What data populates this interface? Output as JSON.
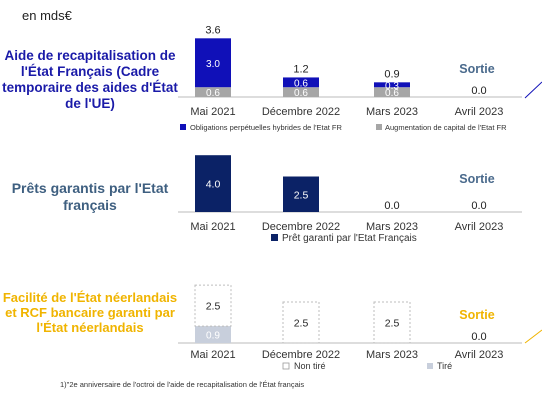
{
  "unit_label": "en mds€",
  "footnote": "1)\"2e anniversaire de l'octroi de l'aide de recapitalisation de l'État français",
  "colors": {
    "navy_blue": "#1010b8",
    "dark_navy": "#0b2266",
    "gray": "#a6a6a6",
    "light_blue": "#c8cfdc",
    "exit_blue": "#4a6a8c",
    "exit_yellow": "#f0b400"
  },
  "chart_data": [
    {
      "type": "bar",
      "title": "Aide de recapitalisation de l'État Français (Cadre temporaire des aides d'État de l'UE)",
      "categories": [
        "Mai 2021",
        "Décembre 2022",
        "Mars 2023",
        "Avril 2023"
      ],
      "series": [
        {
          "name": "Augmentation de capital de l'Etat FR",
          "values": [
            0.6,
            0.6,
            0.6,
            0.0
          ]
        },
        {
          "name": "Obligations perpétuelles hybrides de l'Etat FR",
          "values": [
            3.0,
            0.6,
            0.3,
            0.0
          ]
        }
      ],
      "totals": [
        "3.6",
        "1.2",
        "0.9",
        "0.0"
      ],
      "segment_labels": [
        [
          "0.6",
          "3.0"
        ],
        [
          "0.6",
          "0.6"
        ],
        [
          "0.6",
          "0.3"
        ],
        []
      ],
      "annotation": "Sortie",
      "stacked": true
    },
    {
      "type": "bar",
      "title": "Prêts garantis par l'Etat français",
      "categories": [
        "Mai 2021",
        "Decembre 2022",
        "Mars 2023",
        "Avril 2023"
      ],
      "series": [
        {
          "name": "Prêt garanti par l'Etat Français",
          "values": [
            4.0,
            2.5,
            0.0,
            0.0
          ]
        }
      ],
      "labels": [
        "4.0",
        "2.5",
        "0.0",
        "0.0"
      ],
      "annotation": "Sortie"
    },
    {
      "type": "bar",
      "title": "Facilité de l'État néerlandais et RCF bancaire garanti par l'État néerlandais",
      "categories": [
        "Mai 2021",
        "Décembre 2022",
        "Mars 2023",
        "Avril 2023"
      ],
      "series": [
        {
          "name": "Tiré",
          "values": [
            0.9,
            0.0,
            0.0,
            0.0
          ]
        },
        {
          "name": "Non tiré",
          "values": [
            2.5,
            2.5,
            2.5,
            0.0
          ]
        }
      ],
      "segment_labels": [
        [
          "0.9",
          "2.5"
        ],
        [
          "",
          "2.5"
        ],
        [
          "",
          "2.5"
        ],
        []
      ],
      "totals": [
        "",
        "",
        "",
        "0.0"
      ],
      "annotation": "Sortie",
      "stacked": true
    }
  ]
}
